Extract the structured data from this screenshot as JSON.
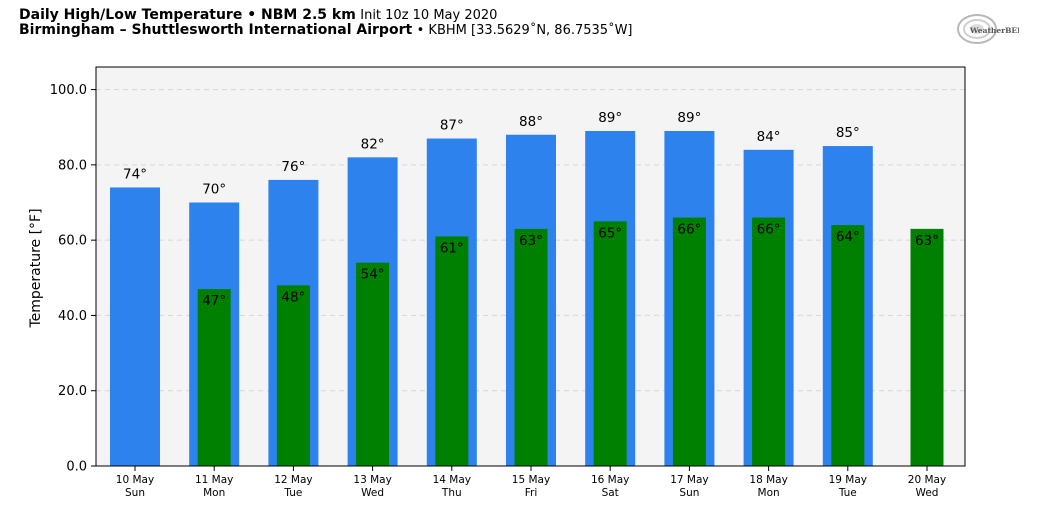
{
  "header": {
    "title_bold": "Daily High/Low Temperature • NBM 2.5 km",
    "title_init": "Init 10z 10 May 2020",
    "location_bold": "Birmingham – Shuttlesworth International Airport",
    "location_rest": "• KBHM [33.5629˚N, 86.7535˚W]"
  },
  "logo": {
    "text": "WeatherBELL",
    "icon": "weatherbell-logo-icon"
  },
  "chart_data": {
    "type": "bar",
    "ylabel": "Temperature [°F]",
    "ylim": [
      0,
      106
    ],
    "yticks": [
      0,
      20,
      40,
      60,
      80,
      100
    ],
    "ytick_labels": [
      "0.0",
      "20.0",
      "40.0",
      "60.0",
      "80.0",
      "100.0"
    ],
    "grid": true,
    "categories": [
      "10 May",
      "11 May",
      "12 May",
      "13 May",
      "14 May",
      "15 May",
      "16 May",
      "17 May",
      "18 May",
      "19 May",
      "20 May"
    ],
    "weekdays": [
      "Sun",
      "Mon",
      "Tue",
      "Wed",
      "Thu",
      "Fri",
      "Sat",
      "Sun",
      "Mon",
      "Tue",
      "Wed"
    ],
    "series": [
      {
        "name": "High",
        "color": "#2e82ee",
        "values": [
          74,
          70,
          76,
          82,
          87,
          88,
          89,
          89,
          84,
          85,
          null
        ],
        "labels": [
          "74°",
          "70°",
          "76°",
          "82°",
          "87°",
          "88°",
          "89°",
          "89°",
          "84°",
          "85°",
          ""
        ]
      },
      {
        "name": "Low",
        "color": "#008000",
        "values": [
          null,
          47,
          48,
          54,
          61,
          63,
          65,
          66,
          66,
          64,
          63
        ],
        "labels": [
          "",
          "47°",
          "48°",
          "54°",
          "61°",
          "63°",
          "65°",
          "66°",
          "66°",
          "64°",
          "63°"
        ]
      }
    ],
    "plot_background": "#f4f4f4"
  }
}
